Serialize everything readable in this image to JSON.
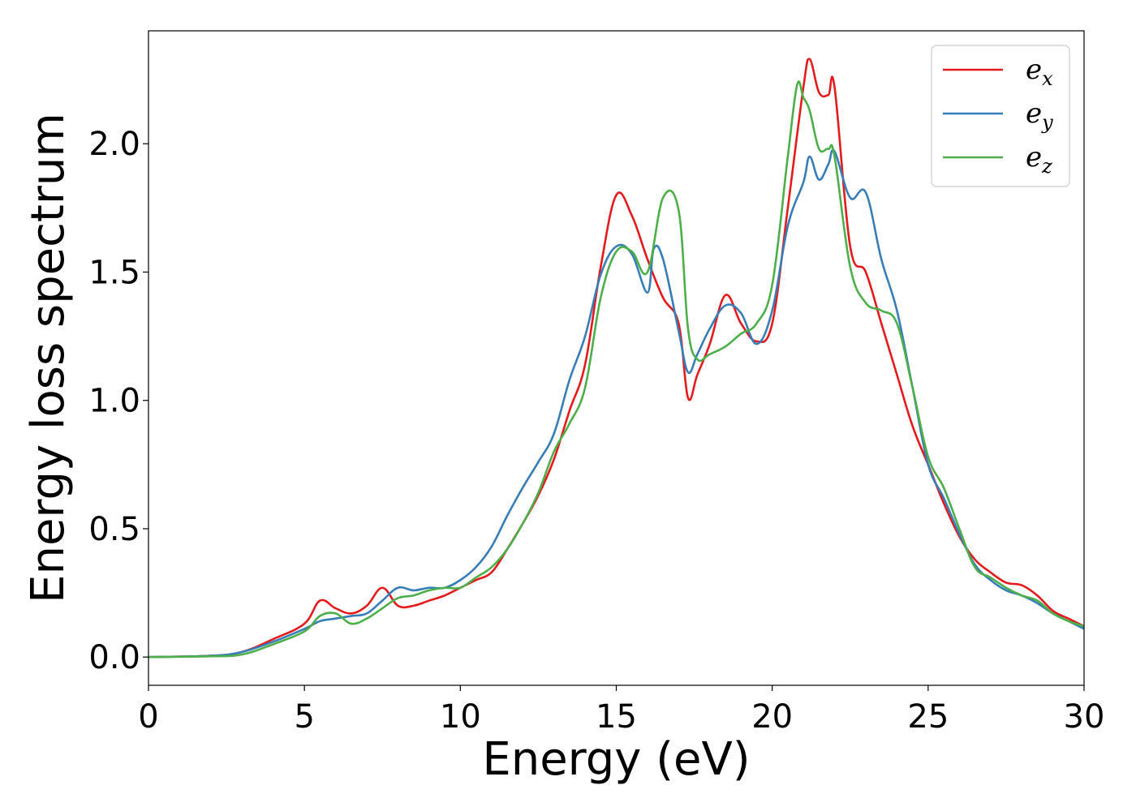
{
  "chart_data": {
    "type": "line",
    "xlabel": "Energy (eV)",
    "ylabel": "Energy loss spectrum",
    "xlim": [
      0,
      30
    ],
    "ylim": [
      -0.11,
      2.44
    ],
    "xticks": [
      0,
      5,
      10,
      15,
      20,
      25,
      30
    ],
    "xtick_labels": [
      "0",
      "5",
      "10",
      "15",
      "20",
      "25",
      "30"
    ],
    "yticks": [
      0.0,
      0.5,
      1.0,
      1.5,
      2.0
    ],
    "ytick_labels": [
      "0.0",
      "0.5",
      "1.0",
      "1.5",
      "2.0"
    ],
    "grid": false,
    "legend_position": "top-right",
    "series": [
      {
        "name": "e",
        "subscript": "x",
        "color": "#e41a1c",
        "x": [
          0,
          2,
          3,
          4,
          5,
          5.5,
          6,
          6.5,
          7,
          7.5,
          8,
          8.5,
          9,
          9.5,
          10,
          10.5,
          11,
          11.5,
          12,
          12.5,
          13,
          13.5,
          14,
          14.5,
          15,
          15.5,
          16,
          16.5,
          17,
          17.3,
          17.6,
          18,
          18.5,
          19,
          19.5,
          20,
          20.5,
          21,
          21.2,
          21.5,
          21.8,
          22,
          22.5,
          23,
          23.5,
          24,
          24.5,
          25,
          25.5,
          26,
          26.5,
          27,
          27.5,
          28,
          28.5,
          29,
          29.5,
          30
        ],
        "y": [
          0.0,
          0.005,
          0.02,
          0.07,
          0.13,
          0.22,
          0.19,
          0.17,
          0.2,
          0.27,
          0.2,
          0.2,
          0.22,
          0.24,
          0.27,
          0.3,
          0.33,
          0.42,
          0.52,
          0.63,
          0.77,
          0.96,
          1.14,
          1.52,
          1.8,
          1.72,
          1.55,
          1.4,
          1.3,
          1.01,
          1.1,
          1.22,
          1.41,
          1.3,
          1.23,
          1.3,
          1.75,
          2.22,
          2.33,
          2.2,
          2.19,
          2.22,
          1.6,
          1.5,
          1.3,
          1.1,
          0.9,
          0.75,
          0.6,
          0.47,
          0.38,
          0.33,
          0.29,
          0.28,
          0.24,
          0.18,
          0.15,
          0.12
        ]
      },
      {
        "name": "e",
        "subscript": "y",
        "color": "#377eb8",
        "x": [
          0,
          2,
          3,
          4,
          5,
          5.5,
          6,
          6.5,
          7,
          7.5,
          8,
          8.5,
          9,
          9.5,
          10,
          10.5,
          11,
          11.5,
          12,
          12.5,
          13,
          13.5,
          14,
          14.5,
          15,
          15.5,
          16,
          16.2,
          16.5,
          17,
          17.3,
          17.6,
          18,
          18.5,
          19,
          19.5,
          20,
          20.5,
          21,
          21.2,
          21.5,
          21.8,
          22,
          22.5,
          23,
          23.5,
          24,
          24.5,
          25,
          25.5,
          26,
          26.5,
          27,
          27.5,
          28,
          28.5,
          29,
          29.5,
          30
        ],
        "y": [
          0.0,
          0.005,
          0.02,
          0.06,
          0.11,
          0.14,
          0.15,
          0.16,
          0.17,
          0.22,
          0.27,
          0.26,
          0.27,
          0.27,
          0.3,
          0.35,
          0.43,
          0.55,
          0.66,
          0.76,
          0.87,
          1.08,
          1.25,
          1.49,
          1.6,
          1.57,
          1.42,
          1.59,
          1.55,
          1.27,
          1.11,
          1.18,
          1.28,
          1.37,
          1.34,
          1.22,
          1.35,
          1.68,
          1.85,
          1.95,
          1.86,
          1.92,
          1.97,
          1.79,
          1.81,
          1.55,
          1.35,
          1.05,
          0.75,
          0.62,
          0.48,
          0.36,
          0.3,
          0.26,
          0.24,
          0.21,
          0.17,
          0.14,
          0.11
        ]
      },
      {
        "name": "e",
        "subscript": "z",
        "color": "#4daf4a",
        "x": [
          0,
          2,
          3,
          4,
          5,
          5.5,
          6,
          6.5,
          7,
          7.5,
          8,
          8.5,
          9,
          9.5,
          10,
          10.5,
          11,
          11.5,
          12,
          12.5,
          13,
          13.5,
          14,
          14.5,
          15,
          15.5,
          16,
          16.5,
          17,
          17.3,
          17.6,
          18,
          18.5,
          19,
          19.5,
          20,
          20.5,
          20.8,
          21,
          21.2,
          21.5,
          21.8,
          22,
          22.5,
          23,
          23.5,
          24,
          24.5,
          25,
          25.5,
          26,
          26.5,
          27,
          27.5,
          28,
          28.5,
          29,
          29.5,
          30
        ],
        "y": [
          0.0,
          0.003,
          0.01,
          0.05,
          0.1,
          0.16,
          0.17,
          0.13,
          0.15,
          0.19,
          0.23,
          0.24,
          0.26,
          0.27,
          0.27,
          0.31,
          0.35,
          0.42,
          0.52,
          0.64,
          0.8,
          0.91,
          1.05,
          1.4,
          1.58,
          1.58,
          1.5,
          1.79,
          1.74,
          1.28,
          1.16,
          1.18,
          1.21,
          1.26,
          1.3,
          1.45,
          1.95,
          2.23,
          2.18,
          2.13,
          1.98,
          1.98,
          1.95,
          1.52,
          1.38,
          1.35,
          1.3,
          1.05,
          0.78,
          0.66,
          0.5,
          0.35,
          0.31,
          0.27,
          0.24,
          0.22,
          0.17,
          0.14,
          0.12
        ]
      }
    ]
  }
}
